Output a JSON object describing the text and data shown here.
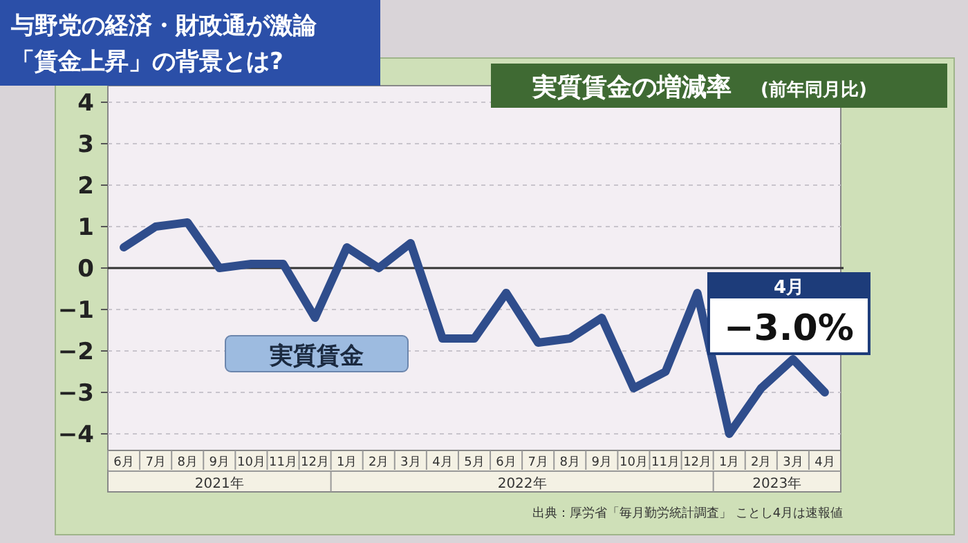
{
  "chart_data": {
    "type": "line",
    "title": "実質賃金の増減率",
    "subtitle": "(前年同月比)",
    "categories": [
      "6月",
      "7月",
      "8月",
      "9月",
      "10月",
      "11月",
      "12月",
      "1月",
      "2月",
      "3月",
      "4月",
      "5月",
      "6月",
      "7月",
      "8月",
      "9月",
      "10月",
      "11月",
      "12月",
      "1月",
      "2月",
      "3月",
      "4月"
    ],
    "series": [
      {
        "name": "実質賃金",
        "color": "#2f4d8c",
        "values": [
          0.5,
          1.0,
          1.1,
          0.0,
          0.1,
          0.1,
          -1.2,
          0.5,
          0.0,
          0.6,
          -1.7,
          -1.7,
          -0.6,
          -1.8,
          -1.7,
          -1.2,
          -2.9,
          -2.5,
          -0.6,
          -4.0,
          -2.9,
          -2.2,
          -3.0
        ],
        "value_labels": [
          null,
          null,
          null,
          null,
          null,
          null,
          null,
          null,
          null,
          null,
          null,
          null,
          null,
          null,
          null,
          null,
          null,
          null,
          null,
          null,
          null,
          null,
          "−3.0%"
        ]
      }
    ],
    "ylim": [
      -4.4,
      4.4
    ],
    "yticks": [
      -4,
      -3,
      -2,
      -1,
      0,
      1,
      2,
      3,
      4
    ],
    "grid": "y",
    "marker": "none",
    "line_style": "solid",
    "ref_lines": [
      {
        "axis": "y",
        "value": 0,
        "color": "#333333"
      }
    ],
    "annotations": [
      "与野党の経済・財政通が激論",
      "「賃金上昇」の背景とは?",
      "2021年",
      "2022年",
      "2023年",
      "4月",
      "出典：厚労省「毎月勤労統計調査」 ことし4月は速報値"
    ]
  }
}
